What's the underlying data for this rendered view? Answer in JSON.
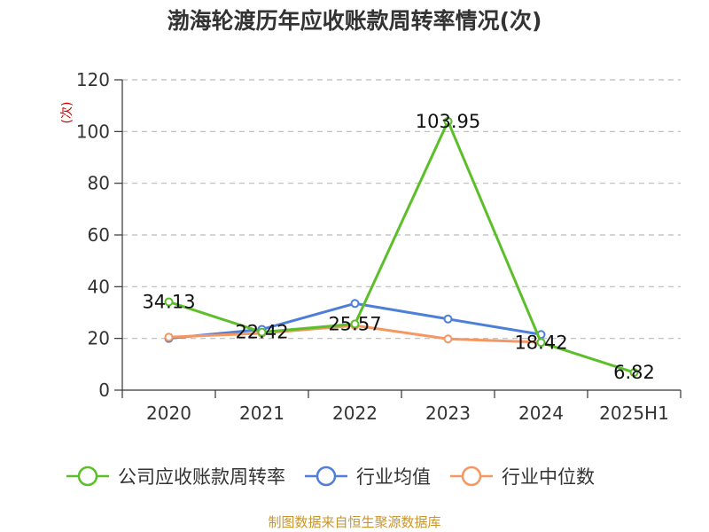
{
  "chart_data": {
    "type": "line",
    "title": "渤海轮渡历年应收账款周转率情况(次)",
    "ylabel": "(次)",
    "categories": [
      "2020",
      "2021",
      "2022",
      "2023",
      "2024",
      "2025H1"
    ],
    "ylim": [
      0,
      120
    ],
    "yticks": [
      0,
      20,
      40,
      60,
      80,
      100,
      120
    ],
    "grid": true,
    "legend_position": "bottom",
    "series": [
      {
        "name": "公司应收账款周转率",
        "color": "#5cbf2a",
        "values": [
          34.13,
          22.42,
          25.57,
          103.95,
          18.42,
          6.82
        ],
        "labels": [
          "34.13",
          "22.42",
          "25.57",
          "103.95",
          "18.42",
          "6.82"
        ]
      },
      {
        "name": "行业均值",
        "color": "#4e7fd8",
        "values": [
          20.0,
          23.5,
          33.5,
          27.5,
          21.5,
          null
        ]
      },
      {
        "name": "行业中位数",
        "color": "#f59762",
        "values": [
          20.5,
          22.0,
          25.0,
          19.8,
          18.5,
          null
        ]
      }
    ],
    "source": "制图数据来自恒生聚源数据库"
  }
}
